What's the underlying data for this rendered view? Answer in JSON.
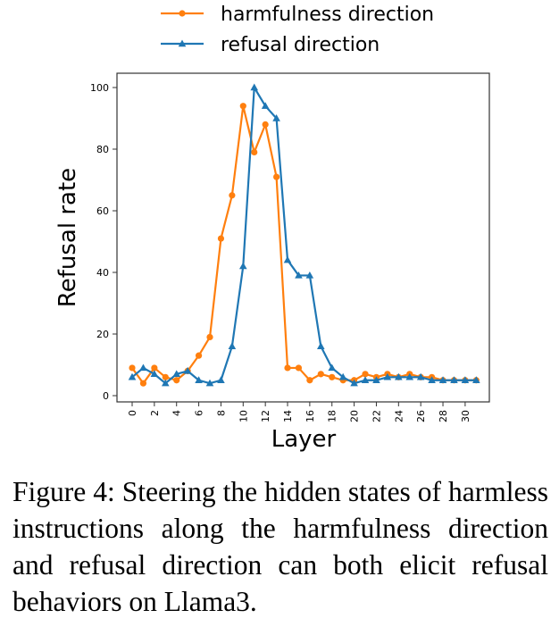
{
  "chart_data": {
    "type": "line",
    "title": "",
    "xlabel": "Layer",
    "ylabel": "Refusal rate",
    "xlim": [
      -1,
      32
    ],
    "ylim": [
      -1,
      101
    ],
    "xticks": [
      0,
      2,
      4,
      6,
      8,
      10,
      12,
      14,
      16,
      18,
      20,
      22,
      24,
      26,
      28,
      30
    ],
    "yticks": [
      0,
      20,
      40,
      60,
      80,
      100
    ],
    "grid": false,
    "legend_position": "top-center-outside",
    "x": [
      0,
      1,
      2,
      3,
      4,
      5,
      6,
      7,
      8,
      9,
      10,
      11,
      12,
      13,
      14,
      15,
      16,
      17,
      18,
      19,
      20,
      21,
      22,
      23,
      24,
      25,
      26,
      27,
      28,
      29,
      30,
      31
    ],
    "series": [
      {
        "name": "harmfulness direction",
        "color": "#ff7f0e",
        "marker": "circle",
        "values": [
          9,
          4,
          9,
          6,
          5,
          8,
          13,
          19,
          51,
          65,
          94,
          79,
          88,
          71,
          9,
          9,
          5,
          7,
          6,
          5,
          5,
          7,
          6,
          7,
          6,
          7,
          6,
          6,
          5,
          5,
          5,
          5
        ]
      },
      {
        "name": "refusal direction",
        "color": "#1f77b4",
        "marker": "triangle",
        "values": [
          6,
          9,
          7,
          4,
          7,
          8,
          5,
          4,
          5,
          16,
          42,
          100,
          94,
          90,
          44,
          39,
          39,
          16,
          9,
          6,
          4,
          5,
          5,
          6,
          6,
          6,
          6,
          5,
          5,
          5,
          5,
          5
        ]
      }
    ]
  },
  "caption": "Figure 4: Steering the hidden states of harmless instructions along the harmfulness direction and refusal direction can both elicit refusal behaviors on Llama3."
}
